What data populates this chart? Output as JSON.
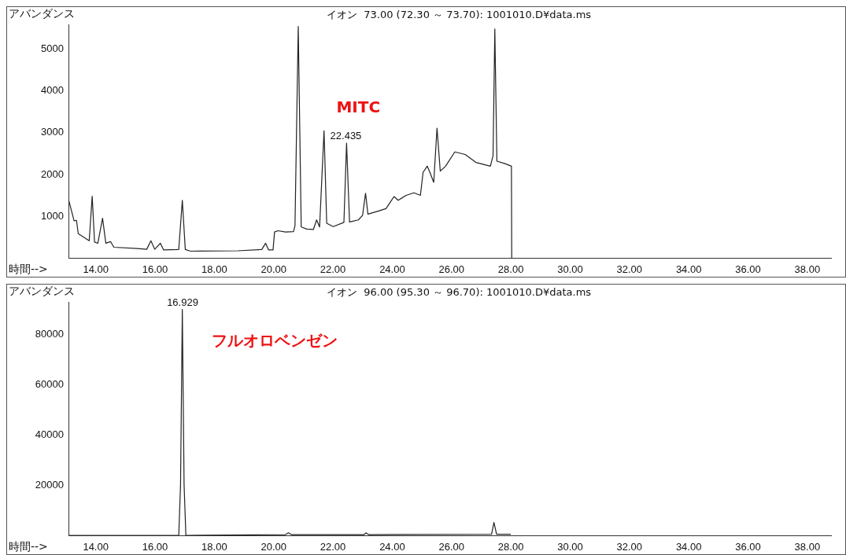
{
  "chart_data": [
    {
      "type": "line",
      "title": "イオン  73.00 (72.30 ～ 73.70): 1001010.D¥data.ms",
      "xlabel": "時間-->",
      "ylabel": "アバンダンス",
      "series": [
        {
          "color": "#222222",
          "x": [
            13.08,
            13.12,
            13.27,
            13.35,
            13.41,
            13.78,
            13.88,
            13.96,
            14.07,
            14.23,
            14.34,
            14.5,
            14.61,
            15.4,
            15.72,
            15.86,
            15.99,
            16.18,
            16.29,
            16.8,
            16.92,
            17.02,
            17.2,
            18.8,
            19.6,
            19.73,
            19.83,
            19.98,
            20.03,
            20.14,
            20.4,
            20.67,
            20.72,
            20.83,
            20.93,
            21.12,
            21.34,
            21.45,
            21.55,
            21.7,
            21.79,
            22.01,
            22.37,
            22.46,
            22.56,
            22.86,
            23.0,
            23.1,
            23.18,
            23.52,
            23.79,
            24.06,
            24.2,
            24.47,
            24.73,
            24.95,
            25.04,
            25.18,
            25.27,
            25.4,
            25.51,
            25.62,
            25.8,
            26.11,
            26.46,
            26.82,
            27.31,
            27.4,
            27.46,
            27.53,
            27.8,
            28.02,
            28.03
          ],
          "values": [
            1400,
            1300,
            890,
            900,
            580,
            410,
            1480,
            380,
            350,
            950,
            350,
            390,
            255,
            225,
            205,
            410,
            205,
            350,
            190,
            200,
            1380,
            200,
            160,
            170,
            200,
            350,
            190,
            190,
            620,
            650,
            620,
            630,
            770,
            5550,
            740,
            690,
            680,
            910,
            740,
            3050,
            830,
            750,
            850,
            2750,
            860,
            910,
            1020,
            1550,
            1050,
            1120,
            1180,
            1470,
            1380,
            1500,
            1560,
            1500,
            2050,
            2200,
            2050,
            1810,
            3110,
            2080,
            2200,
            2540,
            2480,
            2290,
            2200,
            2450,
            5490,
            2320,
            2260,
            2200,
            0
          ]
        }
      ],
      "xlim": [
        13.08,
        38.8
      ],
      "xticks": [
        {
          "value": 14,
          "label": "14.00"
        },
        {
          "value": 16,
          "label": "16.00"
        },
        {
          "value": 18,
          "label": "18.00"
        },
        {
          "value": 20,
          "label": "20.00"
        },
        {
          "value": 22,
          "label": "22.00"
        },
        {
          "value": 24,
          "label": "24.00"
        },
        {
          "value": 26,
          "label": "26.00"
        },
        {
          "value": 28,
          "label": "28.00"
        },
        {
          "value": 30,
          "label": "30.00"
        },
        {
          "value": 32,
          "label": "32.00"
        },
        {
          "value": 34,
          "label": "34.00"
        },
        {
          "value": 36,
          "label": "36.00"
        },
        {
          "value": 38,
          "label": "38.00"
        }
      ],
      "ylim": [
        0,
        5600
      ],
      "yticks": [
        1000,
        2000,
        3000,
        4000,
        5000
      ],
      "annotations": [
        {
          "text": "22.435",
          "x": 22.435,
          "y": 2750
        },
        "MITC"
      ],
      "grid": false,
      "legend": false
    },
    {
      "type": "line",
      "title": "イオン  96.00 (95.30 ～ 96.70): 1001010.D¥data.ms",
      "xlabel": "時間-->",
      "ylabel": "アバンダンス",
      "series": [
        {
          "color": "#222222",
          "x": [
            13.08,
            16.8,
            16.86,
            16.92,
            16.98,
            17.04,
            20.4,
            20.5,
            20.6,
            23.05,
            23.11,
            23.2,
            27.35,
            27.43,
            27.52,
            28.0
          ],
          "values": [
            0,
            0,
            20000,
            90000,
            20000,
            0,
            300,
            1000,
            300,
            300,
            1000,
            300,
            400,
            5100,
            400,
            400
          ]
        }
      ],
      "xlim": [
        13.08,
        38.8
      ],
      "xticks": [
        {
          "value": 14,
          "label": "14.00"
        },
        {
          "value": 16,
          "label": "16.00"
        },
        {
          "value": 18,
          "label": "18.00"
        },
        {
          "value": 20,
          "label": "20.00"
        },
        {
          "value": 22,
          "label": "22.00"
        },
        {
          "value": 24,
          "label": "24.00"
        },
        {
          "value": 26,
          "label": "26.00"
        },
        {
          "value": 28,
          "label": "28.00"
        },
        {
          "value": 30,
          "label": "30.00"
        },
        {
          "value": 32,
          "label": "32.00"
        },
        {
          "value": 34,
          "label": "34.00"
        },
        {
          "value": 36,
          "label": "36.00"
        },
        {
          "value": 38,
          "label": "38.00"
        }
      ],
      "ylim": [
        0,
        93000
      ],
      "yticks": [
        20000,
        40000,
        60000,
        80000
      ],
      "annotations": [
        {
          "text": "16.929",
          "x": 16.929,
          "y": 90000
        },
        "フルオロベンゼン"
      ],
      "grid": false,
      "legend": false
    }
  ]
}
